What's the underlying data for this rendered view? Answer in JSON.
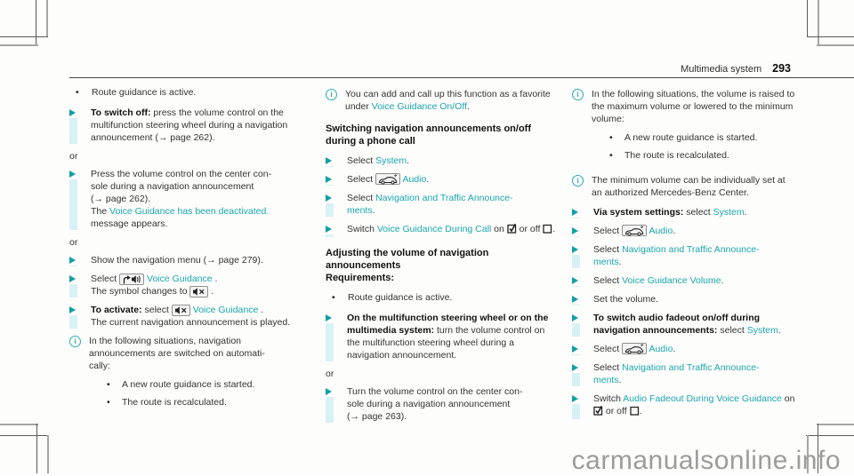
{
  "header": {
    "section_title": "Multimedia system",
    "page_number": "293"
  },
  "watermark": "carmanualsonline.info",
  "colors": {
    "accent_teal": "#1aa6ac",
    "arrow_teal": "#0f9fa6",
    "highlight_bar": "#d8f2f4",
    "body_text": "#333333",
    "watermark_gray": "#9c9c9c"
  },
  "columns": [
    {
      "blocks": [
        {
          "type": "bullet",
          "segments": [
            {
              "t": "text",
              "v": "Route guidance is active."
            }
          ]
        },
        {
          "type": "instruction",
          "segments": [
            {
              "t": "bold",
              "v": "To switch off:"
            },
            {
              "t": "text",
              "v": " press the volume control on the multifunction steering wheel during a navigation announcement (→ page 262)."
            }
          ]
        },
        {
          "type": "or",
          "segments": [
            {
              "t": "text",
              "v": "or"
            }
          ]
        },
        {
          "type": "instruction",
          "segments": [
            {
              "t": "text",
              "v": "Press the volume control on the center con-\nsole during a navigation announcement\n(→ page 262).\nThe "
            },
            {
              "t": "link",
              "v": "Voice Guidance has been deactivated."
            },
            {
              "t": "text",
              "v": " message appears."
            }
          ]
        },
        {
          "type": "or",
          "segments": [
            {
              "t": "text",
              "v": "or"
            }
          ]
        },
        {
          "type": "instruction",
          "segments": [
            {
              "t": "text",
              "v": "Show the navigation menu (→ page 279)."
            }
          ]
        },
        {
          "type": "instruction",
          "segments": [
            {
              "t": "text",
              "v": "Select "
            },
            {
              "t": "icon",
              "v": "voice-guidance-on"
            },
            {
              "t": "text",
              "v": " "
            },
            {
              "t": "link",
              "v": "Voice Guidance"
            },
            {
              "t": "text",
              "v": " ."
            },
            {
              "t": "br"
            },
            {
              "t": "text",
              "v": "The symbol changes to "
            },
            {
              "t": "icon",
              "v": "voice-guidance-off"
            },
            {
              "t": "text",
              "v": " ."
            }
          ]
        },
        {
          "type": "instruction",
          "segments": [
            {
              "t": "bold",
              "v": "To activate:"
            },
            {
              "t": "text",
              "v": " select "
            },
            {
              "t": "icon",
              "v": "voice-guidance-off"
            },
            {
              "t": "text",
              "v": " "
            },
            {
              "t": "link",
              "v": "Voice Guidance"
            },
            {
              "t": "text",
              "v": " ."
            },
            {
              "t": "br"
            },
            {
              "t": "text",
              "v": "The current navigation announcement is played."
            }
          ]
        },
        {
          "type": "note",
          "segments": [
            {
              "t": "text",
              "v": "In the following situations, navigation announcements are switched on automati-\ncally:"
            }
          ],
          "bullets": [
            "A new route guidance is started.",
            "The route is recalculated."
          ]
        }
      ]
    },
    {
      "blocks": [
        {
          "type": "note",
          "segments": [
            {
              "t": "text",
              "v": "You can add and call up this function as a favorite under "
            },
            {
              "t": "link",
              "v": "Voice Guidance On/Off"
            },
            {
              "t": "text",
              "v": "."
            }
          ]
        },
        {
          "type": "heading",
          "segments": [
            {
              "t": "text",
              "v": "Switching navigation announcements on/off during a phone call"
            }
          ]
        },
        {
          "type": "instruction",
          "segments": [
            {
              "t": "text",
              "v": "Select "
            },
            {
              "t": "link",
              "v": "System"
            },
            {
              "t": "text",
              "v": "."
            }
          ]
        },
        {
          "type": "instruction",
          "segments": [
            {
              "t": "text",
              "v": "Select "
            },
            {
              "t": "icon",
              "v": "car-audio"
            },
            {
              "t": "text",
              "v": " "
            },
            {
              "t": "link",
              "v": "Audio"
            },
            {
              "t": "text",
              "v": "."
            }
          ]
        },
        {
          "type": "instruction",
          "segments": [
            {
              "t": "text",
              "v": "Select "
            },
            {
              "t": "link",
              "v": "Navigation and Traffic Announce-\nments"
            },
            {
              "t": "text",
              "v": "."
            }
          ]
        },
        {
          "type": "instruction",
          "segments": [
            {
              "t": "text",
              "v": "Switch "
            },
            {
              "t": "link",
              "v": "Voice Guidance During Call"
            },
            {
              "t": "text",
              "v": " on "
            },
            {
              "t": "icon",
              "v": "checkbox-checked"
            },
            {
              "t": "text",
              "v": " or off "
            },
            {
              "t": "icon",
              "v": "checkbox-unchecked"
            },
            {
              "t": "text",
              "v": "."
            }
          ]
        },
        {
          "type": "heading",
          "segments": [
            {
              "t": "text",
              "v": "Adjusting the volume of navigation announcements\nRequirements:"
            }
          ]
        },
        {
          "type": "bullet",
          "segments": [
            {
              "t": "text",
              "v": "Route guidance is active."
            }
          ]
        },
        {
          "type": "instruction",
          "segments": [
            {
              "t": "bold",
              "v": "On the multifunction steering wheel or on the multimedia system:"
            },
            {
              "t": "text",
              "v": " turn the volume control on the multifunction steering wheel during a navigation announcement."
            }
          ]
        },
        {
          "type": "or",
          "segments": [
            {
              "t": "text",
              "v": "or"
            }
          ]
        },
        {
          "type": "instruction",
          "segments": [
            {
              "t": "text",
              "v": "Turn the volume control on the center con-\nsole during a navigation announcement\n(→ page 263)."
            }
          ]
        }
      ]
    },
    {
      "blocks": [
        {
          "type": "note",
          "segments": [
            {
              "t": "text",
              "v": "In the following situations, the volume is raised to the maximum volume or lowered to the minimum volume:"
            }
          ],
          "bullets": [
            "A new route guidance is started.",
            "The route is recalculated."
          ]
        },
        {
          "type": "note",
          "segments": [
            {
              "t": "text",
              "v": "The minimum volume can be individually set at an authorized Mercedes-Benz Center."
            }
          ]
        },
        {
          "type": "instruction",
          "segments": [
            {
              "t": "bold",
              "v": "Via system settings:"
            },
            {
              "t": "text",
              "v": " select "
            },
            {
              "t": "link",
              "v": "System"
            },
            {
              "t": "text",
              "v": "."
            }
          ]
        },
        {
          "type": "instruction",
          "segments": [
            {
              "t": "text",
              "v": "Select "
            },
            {
              "t": "icon",
              "v": "car-audio"
            },
            {
              "t": "text",
              "v": " "
            },
            {
              "t": "link",
              "v": "Audio"
            },
            {
              "t": "text",
              "v": "."
            }
          ]
        },
        {
          "type": "instruction",
          "segments": [
            {
              "t": "text",
              "v": "Select "
            },
            {
              "t": "link",
              "v": "Navigation and Traffic Announce-\nments"
            },
            {
              "t": "text",
              "v": "."
            }
          ]
        },
        {
          "type": "instruction",
          "segments": [
            {
              "t": "text",
              "v": "Select "
            },
            {
              "t": "link",
              "v": "Voice Guidance Volume"
            },
            {
              "t": "text",
              "v": "."
            }
          ]
        },
        {
          "type": "instruction",
          "segments": [
            {
              "t": "text",
              "v": "Set the volume."
            }
          ]
        },
        {
          "type": "instruction",
          "segments": [
            {
              "t": "bold",
              "v": "To switch audio fadeout on/off during navigation announcements:"
            },
            {
              "t": "text",
              "v": " select "
            },
            {
              "t": "link",
              "v": "System"
            },
            {
              "t": "text",
              "v": "."
            }
          ]
        },
        {
          "type": "instruction",
          "segments": [
            {
              "t": "text",
              "v": "Select "
            },
            {
              "t": "icon",
              "v": "car-audio"
            },
            {
              "t": "text",
              "v": " "
            },
            {
              "t": "link",
              "v": "Audio"
            },
            {
              "t": "text",
              "v": "."
            }
          ]
        },
        {
          "type": "instruction",
          "segments": [
            {
              "t": "text",
              "v": "Select "
            },
            {
              "t": "link",
              "v": "Navigation and Traffic Announce-\nments"
            },
            {
              "t": "text",
              "v": "."
            }
          ]
        },
        {
          "type": "instruction",
          "segments": [
            {
              "t": "text",
              "v": "Switch "
            },
            {
              "t": "link",
              "v": "Audio Fadeout During Voice Guidance"
            },
            {
              "t": "text",
              "v": " on "
            },
            {
              "t": "icon",
              "v": "checkbox-checked"
            },
            {
              "t": "text",
              "v": " or off "
            },
            {
              "t": "icon",
              "v": "checkbox-unchecked"
            },
            {
              "t": "text",
              "v": "."
            }
          ]
        }
      ]
    }
  ]
}
